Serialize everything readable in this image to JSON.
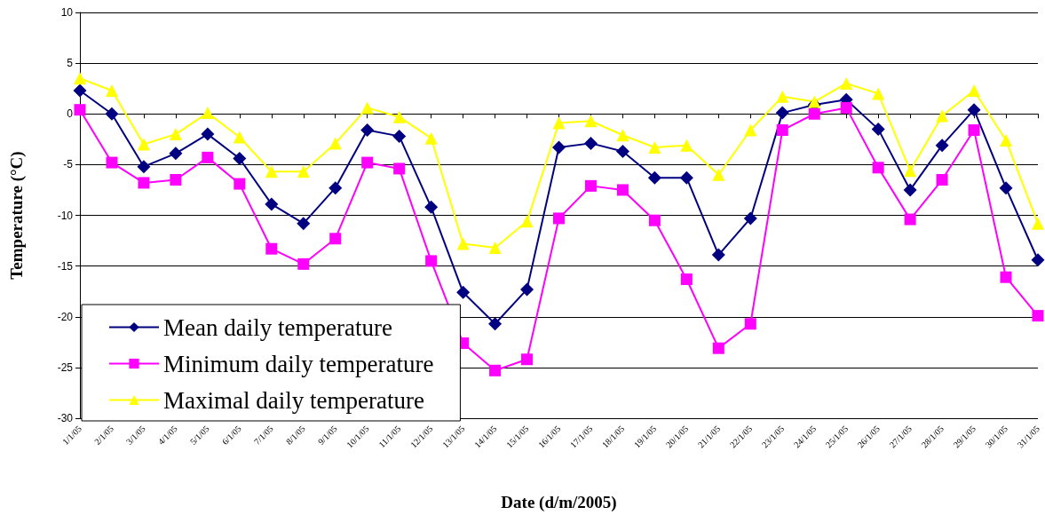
{
  "chart_data": {
    "type": "line",
    "xlabel": "Date (d/m/2005)",
    "ylabel": "Temperature (°C)",
    "categories": [
      "1/1/05",
      "2/1/05",
      "3/1/05",
      "4/1/05",
      "5/1/05",
      "6/1/05",
      "7/1/05",
      "8/1/05",
      "9/1/05",
      "10/1/05",
      "11/1/05",
      "12/1/05",
      "13/1/05",
      "14/1/05",
      "15/1/05",
      "16/1/05",
      "17/1/05",
      "18/1/05",
      "19/1/05",
      "20/1/05",
      "21/1/05",
      "22/1/05",
      "23/1/05",
      "24/1/05",
      "25/1/05",
      "26/1/05",
      "27/1/05",
      "28/1/05",
      "29/1/05",
      "30/1/05",
      "31/1/05"
    ],
    "series": [
      {
        "name": "Mean daily temperature",
        "color": "#000080",
        "marker": "diamond",
        "values": [
          2.3,
          0,
          -5.2,
          -3.9,
          -2,
          -4.4,
          -8.9,
          -10.8,
          -7.3,
          -1.6,
          -2.2,
          -9.2,
          -17.6,
          -20.7,
          -17.3,
          -3.3,
          -2.9,
          -3.7,
          -6.3,
          -6.3,
          -13.9,
          -10.3,
          0.1,
          0.9,
          1.4,
          -1.5,
          -7.5,
          -3.1,
          0.4,
          -7.3,
          -14.4
        ]
      },
      {
        "name": "Minimum daily temperature",
        "color": "#ff00ff",
        "marker": "square",
        "values": [
          0.4,
          -4.8,
          -6.8,
          -6.5,
          -4.3,
          -6.9,
          -13.3,
          -14.8,
          -12.3,
          -4.8,
          -5.4,
          -14.5,
          -22.6,
          -25.3,
          -24.2,
          -10.3,
          -7.1,
          -7.5,
          -10.5,
          -16.3,
          -23.1,
          -20.7,
          -1.6,
          0,
          0.6,
          -5.3,
          -10.4,
          -6.5,
          -1.6,
          -16.1,
          -19.9
        ]
      },
      {
        "name": "Maximal daily temperature",
        "color": "#ffff00",
        "marker": "triangle",
        "values": [
          3.5,
          2.3,
          -3,
          -2,
          0.1,
          -2.3,
          -5.7,
          -5.7,
          -2.9,
          0.6,
          -0.3,
          -2.4,
          -12.8,
          -13.2,
          -10.6,
          -0.9,
          -0.7,
          -2.1,
          -3.3,
          -3.1,
          -6,
          -1.6,
          1.7,
          1.2,
          3,
          2,
          -5.6,
          -0.2,
          2.3,
          -2.6,
          -10.8
        ]
      }
    ],
    "ylim": [
      -30,
      10
    ],
    "yticks": [
      -30,
      -25,
      -20,
      -15,
      -10,
      -5,
      0,
      5,
      10
    ],
    "grid": "y",
    "legend": "bottom left",
    "line_style": "solid"
  }
}
